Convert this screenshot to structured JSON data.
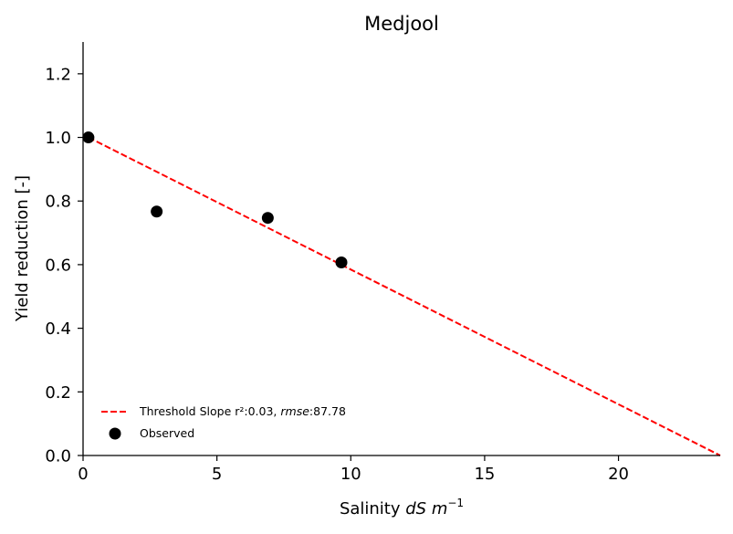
{
  "chart_data": {
    "type": "scatter",
    "title": "Medjool",
    "xlabel": {
      "prefix": "Salinity ",
      "unit": "dS m",
      "sup": "−1"
    },
    "ylabel": "Yield reduction [-]",
    "xlim": [
      0,
      23.8
    ],
    "ylim": [
      0,
      1.3
    ],
    "xticks": [
      0,
      5,
      10,
      15,
      20
    ],
    "yticks": [
      0.0,
      0.2,
      0.4,
      0.6,
      0.8,
      1.0,
      1.2
    ],
    "xtick_labels": [
      "0",
      "5",
      "10",
      "15",
      "20"
    ],
    "ytick_labels": [
      "0.0",
      "0.2",
      "0.4",
      "0.6",
      "0.8",
      "1.0",
      "1.2"
    ],
    "grid": false,
    "legend_position": "lower-left",
    "series": [
      {
        "name": "Threshold Slope",
        "kind": "line",
        "style": "dashed",
        "color": "#ff0000",
        "x": [
          0.2,
          23.8
        ],
        "y": [
          1.0,
          0.0
        ],
        "legend_label": {
          "prefix": "Threshold Slope ",
          "r2": "r²:0.03, ",
          "rmse_label": "rmse",
          "rmse_value": ":87.78"
        }
      },
      {
        "name": "Observed",
        "kind": "scatter",
        "color": "#000000",
        "x": [
          0.2,
          2.75,
          6.9,
          9.65
        ],
        "y": [
          1.0,
          0.767,
          0.747,
          0.607
        ]
      }
    ]
  }
}
